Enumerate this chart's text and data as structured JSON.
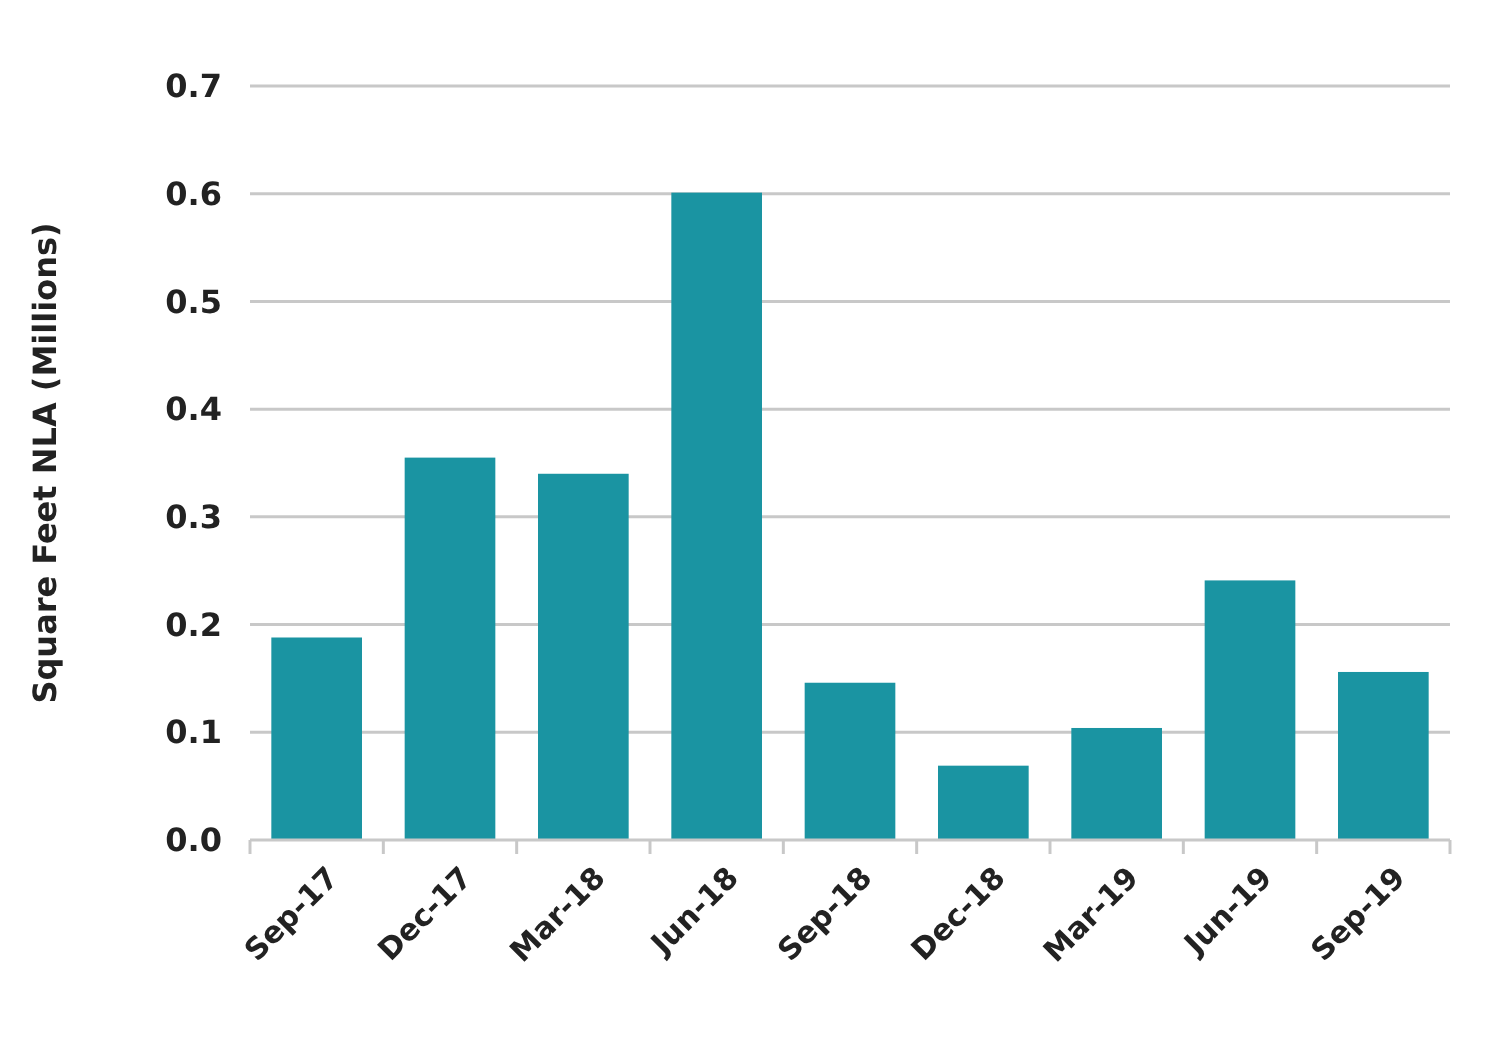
{
  "chart_data": {
    "type": "bar",
    "ylabel": "Square Feet NLA (Millions)",
    "categories": [
      "Sep-17",
      "Dec-17",
      "Mar-18",
      "Jun-18",
      "Sep-18",
      "Dec-18",
      "Mar-19",
      "Jun-19",
      "Sep-19"
    ],
    "values": [
      0.188,
      0.355,
      0.34,
      0.601,
      0.146,
      0.069,
      0.104,
      0.241,
      0.156
    ],
    "color": "#1a94a2",
    "ylim": [
      0,
      0.7
    ],
    "yticks": [
      {
        "value": 0,
        "label": "0.0"
      },
      0.1,
      0.2,
      0.3,
      0.4,
      0.5,
      0.6,
      0.7
    ],
    "grid": "y"
  }
}
